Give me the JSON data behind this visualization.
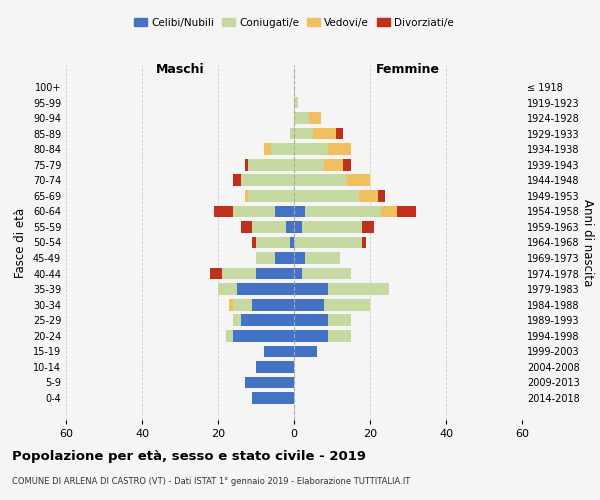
{
  "age_groups": [
    "0-4",
    "5-9",
    "10-14",
    "15-19",
    "20-24",
    "25-29",
    "30-34",
    "35-39",
    "40-44",
    "45-49",
    "50-54",
    "55-59",
    "60-64",
    "65-69",
    "70-74",
    "75-79",
    "80-84",
    "85-89",
    "90-94",
    "95-99",
    "100+"
  ],
  "birth_years": [
    "2014-2018",
    "2009-2013",
    "2004-2008",
    "1999-2003",
    "1994-1998",
    "1989-1993",
    "1984-1988",
    "1979-1983",
    "1974-1978",
    "1969-1973",
    "1964-1968",
    "1959-1963",
    "1954-1958",
    "1949-1953",
    "1944-1948",
    "1939-1943",
    "1934-1938",
    "1929-1933",
    "1924-1928",
    "1919-1923",
    "≤ 1918"
  ],
  "males": {
    "celibi": [
      11,
      13,
      10,
      8,
      16,
      14,
      11,
      15,
      10,
      5,
      1,
      2,
      5,
      0,
      0,
      0,
      0,
      0,
      0,
      0,
      0
    ],
    "coniugati": [
      0,
      0,
      0,
      0,
      2,
      2,
      5,
      5,
      9,
      5,
      9,
      9,
      11,
      12,
      14,
      12,
      6,
      1,
      0,
      0,
      0
    ],
    "vedovi": [
      0,
      0,
      0,
      0,
      0,
      0,
      1,
      0,
      0,
      0,
      0,
      0,
      0,
      1,
      0,
      0,
      2,
      0,
      0,
      0,
      0
    ],
    "divorziati": [
      0,
      0,
      0,
      0,
      0,
      0,
      0,
      0,
      3,
      0,
      1,
      3,
      5,
      0,
      2,
      1,
      0,
      0,
      0,
      0,
      0
    ]
  },
  "females": {
    "nubili": [
      0,
      0,
      0,
      6,
      9,
      9,
      8,
      9,
      2,
      3,
      0,
      2,
      3,
      0,
      0,
      0,
      0,
      0,
      0,
      0,
      0
    ],
    "coniugate": [
      0,
      0,
      0,
      0,
      6,
      6,
      12,
      16,
      13,
      9,
      18,
      16,
      20,
      17,
      14,
      8,
      9,
      5,
      4,
      1,
      0
    ],
    "vedove": [
      0,
      0,
      0,
      0,
      0,
      0,
      0,
      0,
      0,
      0,
      0,
      0,
      4,
      5,
      6,
      5,
      6,
      6,
      3,
      0,
      0
    ],
    "divorziate": [
      0,
      0,
      0,
      0,
      0,
      0,
      0,
      0,
      0,
      0,
      1,
      3,
      5,
      2,
      0,
      2,
      0,
      2,
      0,
      0,
      0
    ]
  },
  "colors": {
    "celibi": "#4472c4",
    "coniugati": "#c5d9a0",
    "vedovi": "#f0c060",
    "divorziati": "#c0301a"
  },
  "title": "Popolazione per età, sesso e stato civile - 2019",
  "subtitle": "COMUNE DI ARLENA DI CASTRO (VT) - Dati ISTAT 1° gennaio 2019 - Elaborazione TUTTITALIA.IT",
  "xlabel_left": "Maschi",
  "xlabel_right": "Femmine",
  "ylabel_left": "Fasce di età",
  "ylabel_right": "Anni di nascita",
  "xlim": 60,
  "bg_color": "#f5f5f5",
  "grid_color": "#cccccc"
}
